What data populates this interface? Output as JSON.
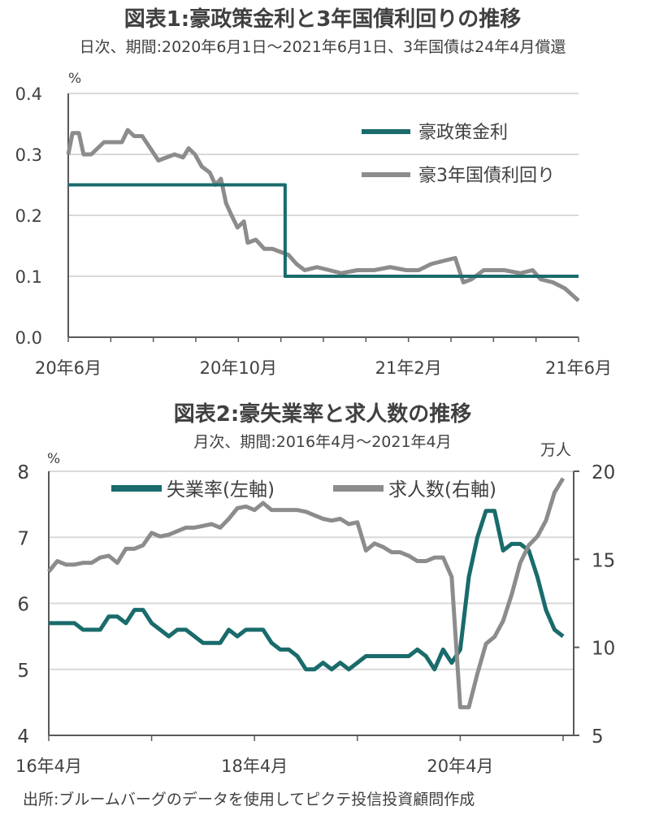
{
  "colors": {
    "teal": "#1a6b6b",
    "gray": "#8c8c8c",
    "grid": "#d9d9d9",
    "axis": "#595959"
  },
  "chart_data": [
    {
      "type": "line",
      "title": "図表1:豪政策金利と3年国債利回りの推移",
      "subtitle": "日次、期間:2020年6月1日～2021年6月1日、3年国債は24年4月償還",
      "ylabel": "%",
      "ylim": [
        0,
        0.4
      ],
      "yticks": [
        "0.0",
        "0.1",
        "0.2",
        "0.3",
        "0.4"
      ],
      "xlim_months": [
        0,
        12
      ],
      "xticks": [
        {
          "m": 0,
          "label": "20年6月"
        },
        {
          "m": 4,
          "label": "20年10月"
        },
        {
          "m": 8,
          "label": "21年2月"
        },
        {
          "m": 12,
          "label": "21年6月"
        }
      ],
      "series": [
        {
          "name": "豪政策金利",
          "color": "teal",
          "points": [
            [
              0,
              0.25
            ],
            [
              5.1,
              0.25
            ],
            [
              5.1,
              0.1
            ],
            [
              12,
              0.1
            ]
          ]
        },
        {
          "name": "豪3年国債利回り",
          "color": "gray",
          "points": [
            [
              0,
              0.3
            ],
            [
              0.1,
              0.335
            ],
            [
              0.25,
              0.335
            ],
            [
              0.36,
              0.3
            ],
            [
              0.54,
              0.3
            ],
            [
              0.69,
              0.31
            ],
            [
              0.84,
              0.32
            ],
            [
              1.07,
              0.32
            ],
            [
              1.26,
              0.32
            ],
            [
              1.4,
              0.34
            ],
            [
              1.55,
              0.33
            ],
            [
              1.74,
              0.33
            ],
            [
              1.93,
              0.31
            ],
            [
              2.12,
              0.29
            ],
            [
              2.31,
              0.295
            ],
            [
              2.5,
              0.3
            ],
            [
              2.7,
              0.295
            ],
            [
              2.83,
              0.31
            ],
            [
              2.98,
              0.3
            ],
            [
              3.14,
              0.28
            ],
            [
              3.33,
              0.27
            ],
            [
              3.46,
              0.25
            ],
            [
              3.59,
              0.26
            ],
            [
              3.71,
              0.22
            ],
            [
              3.84,
              0.2
            ],
            [
              3.98,
              0.18
            ],
            [
              4.13,
              0.19
            ],
            [
              4.22,
              0.155
            ],
            [
              4.41,
              0.16
            ],
            [
              4.61,
              0.145
            ],
            [
              4.8,
              0.145
            ],
            [
              4.99,
              0.14
            ],
            [
              5.18,
              0.135
            ],
            [
              5.37,
              0.12
            ],
            [
              5.56,
              0.11
            ],
            [
              5.85,
              0.115
            ],
            [
              6.14,
              0.11
            ],
            [
              6.42,
              0.105
            ],
            [
              6.8,
              0.11
            ],
            [
              7.19,
              0.11
            ],
            [
              7.57,
              0.115
            ],
            [
              7.95,
              0.11
            ],
            [
              8.24,
              0.11
            ],
            [
              8.53,
              0.12
            ],
            [
              8.81,
              0.125
            ],
            [
              9.1,
              0.13
            ],
            [
              9.29,
              0.09
            ],
            [
              9.48,
              0.095
            ],
            [
              9.77,
              0.11
            ],
            [
              9.96,
              0.11
            ],
            [
              10.25,
              0.11
            ],
            [
              10.63,
              0.105
            ],
            [
              10.92,
              0.11
            ],
            [
              11.11,
              0.095
            ],
            [
              11.4,
              0.09
            ],
            [
              11.68,
              0.08
            ],
            [
              12,
              0.06
            ]
          ]
        }
      ],
      "legend": "top-right"
    },
    {
      "type": "line",
      "title": "図表2:豪失業率と求人数の推移",
      "subtitle": "月次、期間:2016年4月～2021年4月",
      "ylabel": "%",
      "ylim": [
        4,
        8
      ],
      "yticks": [
        "4",
        "5",
        "6",
        "7",
        "8"
      ],
      "y2label": "万人",
      "y2lim": [
        5,
        20
      ],
      "y2ticks": [
        "5",
        "10",
        "15",
        "20"
      ],
      "xticks": [
        {
          "m": 0,
          "label": "16年4月"
        },
        {
          "m": 24,
          "label": "18年4月"
        },
        {
          "m": 48,
          "label": "20年4月"
        }
      ],
      "series": [
        {
          "name": "失業率(左軸)",
          "color": "teal",
          "axis": "left",
          "values": [
            5.7,
            5.7,
            5.7,
            5.7,
            5.6,
            5.6,
            5.6,
            5.8,
            5.8,
            5.7,
            5.9,
            5.9,
            5.7,
            5.6,
            5.5,
            5.6,
            5.6,
            5.5,
            5.4,
            5.4,
            5.4,
            5.6,
            5.5,
            5.6,
            5.6,
            5.6,
            5.4,
            5.3,
            5.3,
            5.2,
            5.0,
            5.0,
            5.1,
            5.0,
            5.1,
            5.0,
            5.1,
            5.2,
            5.2,
            5.2,
            5.2,
            5.2,
            5.2,
            5.3,
            5.2,
            5.0,
            5.3,
            5.1,
            5.3,
            6.4,
            7.0,
            7.4,
            7.4,
            6.8,
            6.9,
            6.9,
            6.8,
            6.4,
            5.9,
            5.6,
            5.5
          ]
        },
        {
          "name": "求人数(右軸)",
          "color": "gray",
          "axis": "right",
          "values": [
            14.3,
            14.9,
            14.7,
            14.7,
            14.8,
            14.8,
            15.1,
            15.2,
            14.8,
            15.6,
            15.6,
            15.8,
            16.5,
            16.3,
            16.4,
            16.6,
            16.8,
            16.8,
            16.9,
            17.0,
            16.8,
            17.3,
            17.9,
            18.0,
            17.8,
            18.2,
            17.8,
            17.8,
            17.8,
            17.8,
            17.7,
            17.5,
            17.3,
            17.2,
            17.3,
            17.0,
            17.1,
            15.5,
            15.9,
            15.7,
            15.4,
            15.4,
            15.2,
            14.9,
            14.9,
            15.1,
            15.1,
            14.0,
            6.6,
            6.6,
            8.5,
            10.2,
            10.6,
            11.5,
            13.0,
            14.8,
            15.8,
            16.3,
            17.2,
            18.8,
            19.6
          ]
        }
      ],
      "legend": "top"
    }
  ],
  "source": "出所:ブルームバーグのデータを使用してピクテ投信投資顧問作成"
}
